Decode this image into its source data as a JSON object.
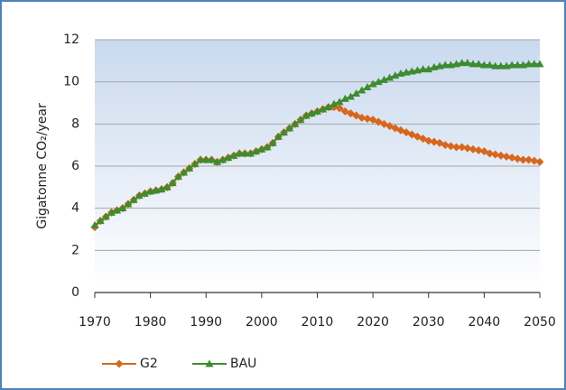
{
  "chart_data": {
    "type": "line",
    "y_label": "Gigatonne CO₂/year",
    "x": [
      1970,
      1971,
      1972,
      1973,
      1974,
      1975,
      1976,
      1977,
      1978,
      1979,
      1980,
      1981,
      1982,
      1983,
      1984,
      1985,
      1986,
      1987,
      1988,
      1989,
      1990,
      1991,
      1992,
      1993,
      1994,
      1995,
      1996,
      1997,
      1998,
      1999,
      2000,
      2001,
      2002,
      2003,
      2004,
      2005,
      2006,
      2007,
      2008,
      2009,
      2010,
      2011,
      2012,
      2013,
      2014,
      2015,
      2016,
      2017,
      2018,
      2019,
      2020,
      2021,
      2022,
      2023,
      2024,
      2025,
      2026,
      2027,
      2028,
      2029,
      2030,
      2031,
      2032,
      2033,
      2034,
      2035,
      2036,
      2037,
      2038,
      2039,
      2040,
      2041,
      2042,
      2043,
      2044,
      2045,
      2046,
      2047,
      2048,
      2049,
      2050
    ],
    "series": [
      {
        "name": "G2",
        "color": "#d9661c",
        "marker": "diamond",
        "values": [
          3.1,
          3.4,
          3.6,
          3.8,
          3.9,
          4.0,
          4.2,
          4.4,
          4.6,
          4.7,
          4.8,
          4.85,
          4.9,
          5.0,
          5.2,
          5.5,
          5.7,
          5.9,
          6.1,
          6.3,
          6.3,
          6.3,
          6.2,
          6.3,
          6.4,
          6.5,
          6.6,
          6.6,
          6.6,
          6.7,
          6.8,
          6.9,
          7.1,
          7.4,
          7.6,
          7.8,
          8.0,
          8.2,
          8.4,
          8.5,
          8.6,
          8.7,
          8.8,
          8.8,
          8.75,
          8.6,
          8.5,
          8.4,
          8.3,
          8.25,
          8.2,
          8.1,
          8.0,
          7.9,
          7.8,
          7.7,
          7.6,
          7.5,
          7.4,
          7.3,
          7.2,
          7.15,
          7.1,
          7.0,
          6.95,
          6.9,
          6.9,
          6.85,
          6.8,
          6.75,
          6.7,
          6.6,
          6.55,
          6.5,
          6.45,
          6.4,
          6.35,
          6.3,
          6.3,
          6.25,
          6.2
        ]
      },
      {
        "name": "BAU",
        "color": "#3d8c2f",
        "marker": "triangle",
        "values": [
          3.2,
          3.4,
          3.6,
          3.8,
          3.9,
          4.0,
          4.2,
          4.4,
          4.6,
          4.7,
          4.8,
          4.85,
          4.9,
          5.0,
          5.2,
          5.5,
          5.7,
          5.9,
          6.1,
          6.3,
          6.3,
          6.3,
          6.2,
          6.3,
          6.4,
          6.5,
          6.6,
          6.6,
          6.6,
          6.7,
          6.8,
          6.9,
          7.1,
          7.4,
          7.6,
          7.8,
          8.0,
          8.2,
          8.4,
          8.5,
          8.6,
          8.7,
          8.8,
          8.95,
          9.05,
          9.2,
          9.3,
          9.45,
          9.6,
          9.75,
          9.9,
          10.0,
          10.1,
          10.2,
          10.3,
          10.4,
          10.45,
          10.5,
          10.55,
          10.6,
          10.6,
          10.7,
          10.75,
          10.8,
          10.8,
          10.85,
          10.9,
          10.9,
          10.85,
          10.85,
          10.8,
          10.8,
          10.75,
          10.75,
          10.75,
          10.8,
          10.8,
          10.8,
          10.85,
          10.85,
          10.85
        ]
      }
    ],
    "xlim": [
      1970,
      2050
    ],
    "xticks": [
      1970,
      1980,
      1990,
      2000,
      2010,
      2020,
      2030,
      2040,
      2050
    ],
    "ylim": [
      0,
      12
    ],
    "yticks": [
      0,
      2,
      4,
      6,
      8,
      10,
      12
    ],
    "grid": true,
    "legend": "bottom"
  }
}
